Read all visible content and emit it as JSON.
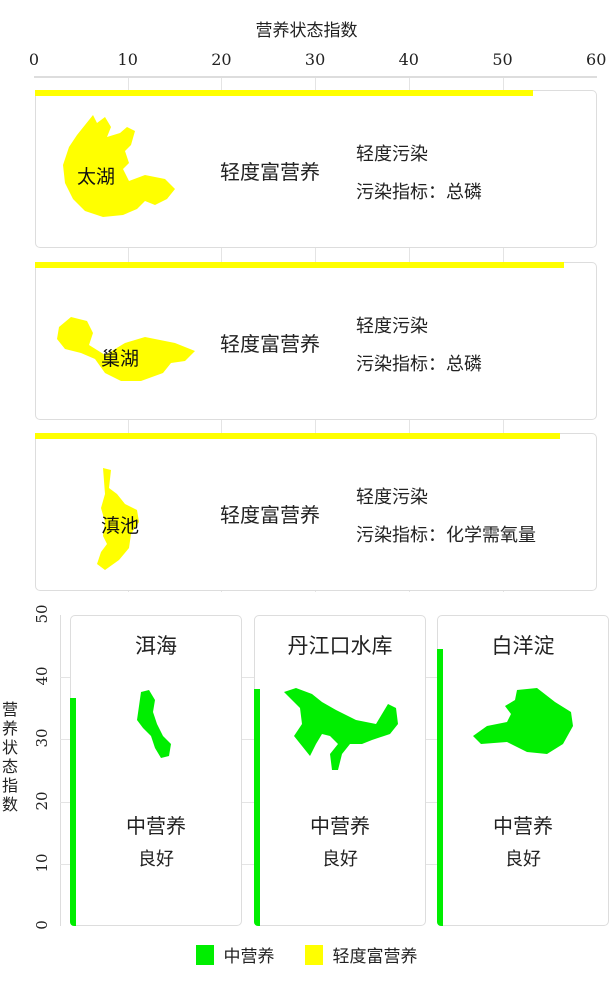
{
  "chart_data": [
    {
      "type": "bar",
      "orientation": "horizontal",
      "xlabel": "营养状态指数",
      "xlim": [
        0,
        60
      ],
      "ticks": [
        "0",
        "10",
        "20",
        "30",
        "40",
        "50",
        "60"
      ],
      "categories": [
        "太湖",
        "巢湖",
        "滇池"
      ],
      "values": [
        53.3,
        56.6,
        56.1
      ],
      "levels": [
        "轻度富营养",
        "轻度富营养",
        "轻度富营养"
      ],
      "pollution": [
        "轻度污染",
        "轻度污染",
        "轻度污染"
      ],
      "indicator_label": "污染指标：",
      "indicators": [
        "总磷",
        "总磷",
        "化学需氧量"
      ],
      "color": "#ffff00"
    },
    {
      "type": "bar",
      "orientation": "vertical",
      "ylabel": "营养状态指数",
      "ylim": [
        0,
        50
      ],
      "ticks": [
        "0",
        "10",
        "20",
        "30",
        "40",
        "50"
      ],
      "categories": [
        "洱海",
        "丹江口水库",
        "白洋淀"
      ],
      "values": [
        36.7,
        38.1,
        44.5
      ],
      "levels": [
        "中营养",
        "中营养",
        "中营养"
      ],
      "quality": [
        "良好",
        "良好",
        "良好"
      ],
      "color": "#00ee00"
    }
  ],
  "legend": [
    {
      "label": "中营养",
      "color": "#00ee00"
    },
    {
      "label": "轻度富营养",
      "color": "#ffff00"
    }
  ]
}
